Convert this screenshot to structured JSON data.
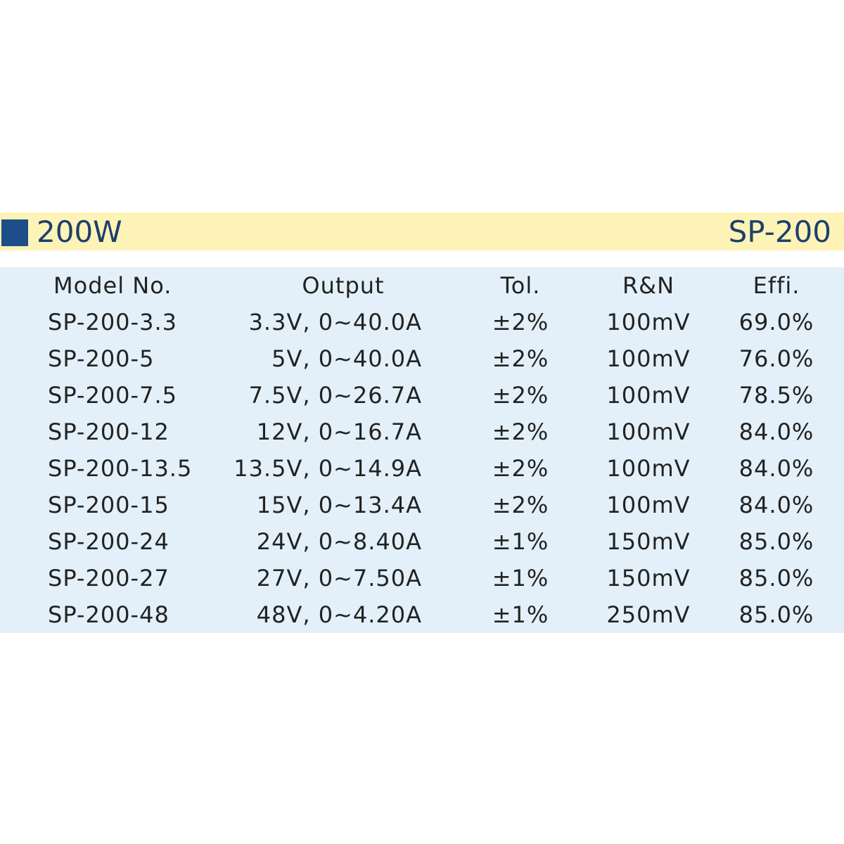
{
  "header": {
    "title": "200W",
    "series": "SP-200"
  },
  "table": {
    "columns": [
      "Model No.",
      "Output",
      "Tol.",
      "R&N",
      "Effi."
    ],
    "rows": [
      [
        "SP-200-3.3",
        "3.3V, 0~40.0A",
        "±2%",
        "100mV",
        "69.0%"
      ],
      [
        "SP-200-5",
        "5V, 0~40.0A",
        "±2%",
        "100mV",
        "76.0%"
      ],
      [
        "SP-200-7.5",
        "7.5V, 0~26.7A",
        "±2%",
        "100mV",
        "78.5%"
      ],
      [
        "SP-200-12",
        "12V, 0~16.7A",
        "±2%",
        "100mV",
        "84.0%"
      ],
      [
        "SP-200-13.5",
        "13.5V, 0~14.9A",
        "±2%",
        "100mV",
        "84.0%"
      ],
      [
        "SP-200-15",
        "15V, 0~13.4A",
        "±2%",
        "100mV",
        "84.0%"
      ],
      [
        "SP-200-24",
        "24V, 0~8.40A",
        "±1%",
        "150mV",
        "85.0%"
      ],
      [
        "SP-200-27",
        "27V, 0~7.50A",
        "±1%",
        "150mV",
        "85.0%"
      ],
      [
        "SP-200-48",
        "48V, 0~4.20A",
        "±1%",
        "250mV",
        "85.0%"
      ]
    ]
  }
}
